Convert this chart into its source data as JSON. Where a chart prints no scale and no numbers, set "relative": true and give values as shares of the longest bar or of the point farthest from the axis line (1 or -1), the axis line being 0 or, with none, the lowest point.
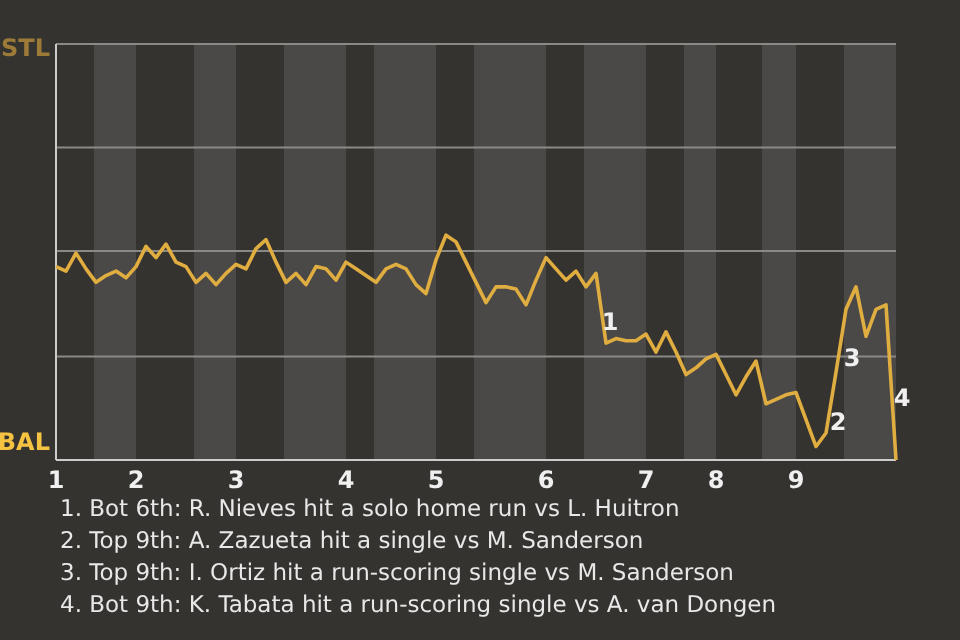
{
  "chart_data": {
    "type": "line",
    "relative": true,
    "categories": [
      "1",
      null,
      null,
      null,
      null,
      null,
      null,
      null,
      "2",
      null,
      null,
      null,
      null,
      null,
      null,
      null,
      null,
      null,
      "3",
      null,
      null,
      null,
      null,
      null,
      null,
      null,
      null,
      null,
      null,
      "4",
      null,
      null,
      null,
      null,
      null,
      null,
      null,
      null,
      "5",
      null,
      null,
      null,
      null,
      null,
      null,
      null,
      null,
      null,
      null,
      "6",
      null,
      null,
      null,
      null,
      null,
      null,
      null,
      null,
      null,
      "7",
      null,
      null,
      null,
      null,
      null,
      null,
      "8",
      null,
      null,
      null,
      null,
      null,
      null,
      null,
      "9",
      null,
      null,
      null,
      null,
      null,
      null,
      null,
      null,
      null,
      null
    ],
    "series": [
      {
        "color": "#e0ad40",
        "values": [
          0.86,
          0.84,
          0.92,
          0.85,
          0.79,
          0.82,
          0.84,
          0.81,
          0.86,
          0.95,
          0.9,
          0.96,
          0.88,
          0.86,
          0.79,
          0.83,
          0.78,
          0.83,
          0.87,
          0.85,
          0.94,
          0.98,
          0.88,
          0.79,
          0.83,
          0.78,
          0.86,
          0.85,
          0.8,
          0.88,
          0.85,
          0.82,
          0.79,
          0.85,
          0.87,
          0.85,
          0.78,
          0.74,
          0.89,
          1,
          0.97,
          0.88,
          0.79,
          0.7,
          0.77,
          0.77,
          0.76,
          0.69,
          0.8,
          0.9,
          0.85,
          0.8,
          0.84,
          0.77,
          0.83,
          0.52,
          0.54,
          0.53,
          0.53,
          0.56,
          0.48,
          0.57,
          0.48,
          0.38,
          0.41,
          0.45,
          0.47,
          0.38,
          0.29,
          0.37,
          0.44,
          0.25,
          0.27,
          0.29,
          0.3,
          0.18,
          0.06,
          0.12,
          0.39,
          0.67,
          0.77,
          0.55,
          0.67,
          0.69,
          0
        ]
      }
    ],
    "marker": "none",
    "ref_lines": [
      {
        "axis": "y",
        "value": 0.46,
        "color": "#8a8985"
      },
      {
        "axis": "y",
        "value": 0.93,
        "color": "#8a8985"
      },
      {
        "axis": "y",
        "value": 1.39,
        "color": "#8a8985"
      },
      {
        "axis": "y",
        "value": 1.85,
        "color": "#8a8985"
      }
    ],
    "annotations": [
      "STL",
      "BAL",
      "1",
      "2",
      "3",
      "4",
      "1. Bot 6th: R. Nieves hit a solo home run vs L. Huitron",
      "2. Top 9th: A. Zazueta hit a single vs M. Sanderson",
      "3. Top 9th: I. Ortiz hit a run-scoring single vs M. Sanderson",
      "4. Bot 9th: K. Tabata hit a run-scoring single vs A. van Dongen"
    ]
  }
}
